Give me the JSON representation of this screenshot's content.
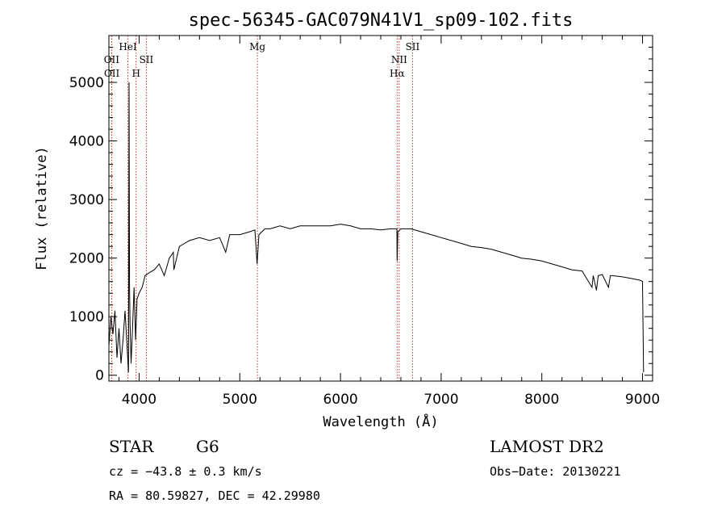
{
  "chart_data": {
    "type": "line",
    "title": "spec-56345-GAC079N41V1_sp09-102.fits",
    "xlabel": "Wavelength (Å)",
    "ylabel": "Flux (relative)",
    "xlim": [
      3700,
      9100
    ],
    "ylim": [
      -100,
      5800
    ],
    "x_ticks": [
      4000,
      5000,
      6000,
      7000,
      8000,
      9000
    ],
    "y_ticks": [
      0,
      1000,
      2000,
      3000,
      4000,
      5000
    ],
    "grid": false,
    "series": [
      {
        "x": [
          3700,
          3720,
          3740,
          3760,
          3780,
          3800,
          3820,
          3840,
          3860,
          3880,
          3895,
          3900,
          3905,
          3910,
          3920,
          3935,
          3950,
          3965,
          3980,
          4000,
          4030,
          4060,
          4100,
          4150,
          4200,
          4250,
          4300,
          4340,
          4345,
          4400,
          4450,
          4500,
          4600,
          4700,
          4800,
          4860,
          4900,
          5000,
          5100,
          5150,
          5172,
          5190,
          5250,
          5300,
          5400,
          5500,
          5600,
          5700,
          5800,
          5900,
          6000,
          6100,
          6200,
          6300,
          6400,
          6500,
          6560,
          6563,
          6570,
          6600,
          6700,
          6800,
          6900,
          7000,
          7100,
          7200,
          7300,
          7400,
          7500,
          7600,
          7700,
          7800,
          7900,
          8000,
          8100,
          8200,
          8300,
          8400,
          8498,
          8510,
          8542,
          8560,
          8600,
          8662,
          8680,
          8700,
          8800,
          8900,
          8980,
          9000,
          9010
        ],
        "y": [
          500,
          1000,
          700,
          1100,
          300,
          800,
          200,
          600,
          1100,
          500,
          50,
          5000,
          1500,
          900,
          200,
          800,
          1500,
          600,
          1300,
          1400,
          1500,
          1700,
          1750,
          1800,
          1900,
          1700,
          2000,
          2100,
          1800,
          2200,
          2250,
          2300,
          2350,
          2300,
          2350,
          2100,
          2400,
          2400,
          2450,
          2480,
          1900,
          2400,
          2500,
          2500,
          2550,
          2500,
          2550,
          2550,
          2550,
          2550,
          2580,
          2550,
          2500,
          2500,
          2480,
          2500,
          2500,
          1950,
          2450,
          2500,
          2500,
          2450,
          2400,
          2350,
          2300,
          2250,
          2200,
          2180,
          2150,
          2100,
          2050,
          2000,
          1980,
          1950,
          1900,
          1850,
          1800,
          1780,
          1500,
          1700,
          1450,
          1700,
          1720,
          1500,
          1700,
          1700,
          1680,
          1650,
          1620,
          1600,
          50
        ]
      }
    ],
    "line_markers": [
      {
        "label": "OII",
        "x": 3727,
        "row": 2
      },
      {
        "label": "OII",
        "x": 3729,
        "row": 3
      },
      {
        "label": "HeI",
        "x": 3889,
        "row": 1
      },
      {
        "label": "H",
        "x": 3970,
        "row": 3
      },
      {
        "label": "SII",
        "x": 4072,
        "row": 2
      },
      {
        "label": "Mg",
        "x": 5175,
        "row": 1
      },
      {
        "label": "NII",
        "x": 6583,
        "row": 2
      },
      {
        "label": "Hα",
        "x": 6563,
        "row": 3
      },
      {
        "label": "SII",
        "x": 6716,
        "row": 1
      }
    ]
  },
  "info": {
    "object_class": "STAR",
    "subclass": "G6",
    "survey": "LAMOST DR2",
    "redshift": "cz = −43.8 ± 0.3 km/s",
    "obs_date": "Obs−Date: 20130221",
    "coords": "RA =  80.59827, DEC =  42.29980"
  },
  "colors": {
    "marker_line": "#c0392b",
    "spectrum": "#000000",
    "text": "#000000"
  }
}
